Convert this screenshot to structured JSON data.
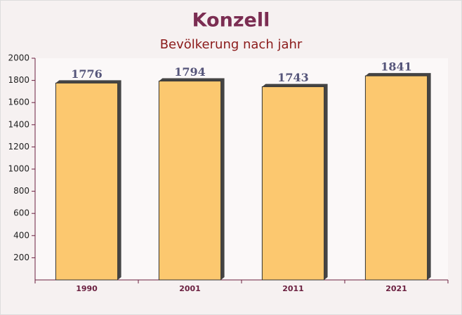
{
  "chart_data": {
    "type": "bar",
    "title": "Konzell",
    "subtitle": "Bevölkerung nach jahr",
    "categories": [
      "1990",
      "2001",
      "2011",
      "2021"
    ],
    "values": [
      1776,
      1794,
      1743,
      1841
    ],
    "color": "#fbbf57",
    "ylim": [
      0,
      2000
    ],
    "yticks": [
      200,
      400,
      600,
      800,
      1000,
      1200,
      1400,
      1600,
      1800,
      2000
    ],
    "grid": false
  }
}
